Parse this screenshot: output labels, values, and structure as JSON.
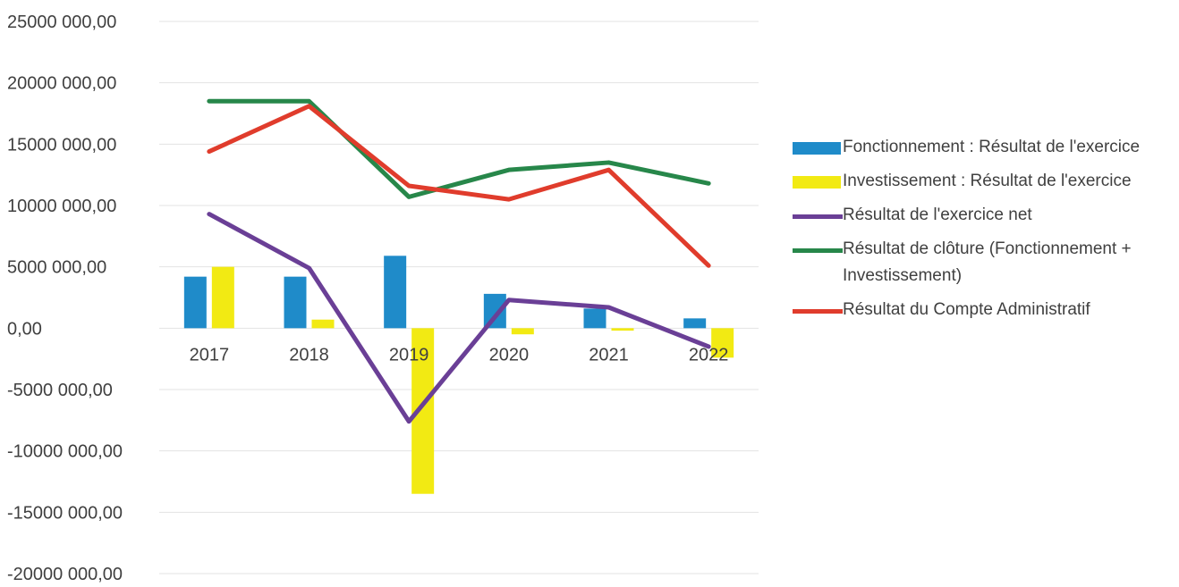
{
  "chart_data": {
    "type": "bar",
    "categories": [
      "2017",
      "2018",
      "2019",
      "2020",
      "2021",
      "2022"
    ],
    "ylim": [
      -20000000,
      25000000
    ],
    "yticks": [
      25000000,
      20000000,
      15000000,
      10000000,
      5000000,
      0,
      -5000000,
      -10000000,
      -15000000,
      -20000000
    ],
    "ytick_labels": [
      "25000 000,00",
      "20000 000,00",
      "15000 000,00",
      "10000 000,00",
      "5000 000,00",
      "0,00",
      "-5000 000,00",
      "-10000 000,00",
      "-15000 000,00",
      "-20000 000,00"
    ],
    "grid": true,
    "legend_position": "right",
    "bar_series": [
      {
        "name": "Fonctionnement : Résultat de l'exercice",
        "color": "#1f8bc9",
        "values": [
          4200000,
          4200000,
          5900000,
          2800000,
          1600000,
          800000
        ]
      },
      {
        "name": "Investissement : Résultat de l'exercice",
        "color": "#f2ea13",
        "values": [
          5000000,
          700000,
          -13500000,
          -500000,
          -200000,
          -2400000
        ]
      }
    ],
    "line_series": [
      {
        "name": "Résultat de l'exercice net",
        "color": "#6a3f96",
        "values": [
          9300000,
          4900000,
          -7600000,
          2300000,
          1700000,
          -1500000
        ]
      },
      {
        "name": "Résultat de clôture (Fonctionnement + Investissement)",
        "color": "#27874a",
        "values": [
          18500000,
          18500000,
          10700000,
          12900000,
          13500000,
          11800000
        ]
      },
      {
        "name": "Résultat du Compte Administratif",
        "color": "#e03c2c",
        "values": [
          14400000,
          18100000,
          11600000,
          10500000,
          12900000,
          5100000
        ]
      }
    ]
  },
  "legend": {
    "items": [
      {
        "label": "Fonctionnement : Résultat de l'exercice",
        "kind": "bar",
        "color": "#1f8bc9"
      },
      {
        "label": "Investissement : Résultat de l'exercice",
        "kind": "bar",
        "color": "#f2ea13"
      },
      {
        "label": "Résultat de l'exercice net",
        "kind": "line",
        "color": "#6a3f96"
      },
      {
        "label": "Résultat de clôture (Fonctionnement + Investissement)",
        "kind": "line",
        "color": "#27874a"
      },
      {
        "label": "Résultat du Compte Administratif",
        "kind": "line",
        "color": "#e03c2c"
      }
    ]
  }
}
